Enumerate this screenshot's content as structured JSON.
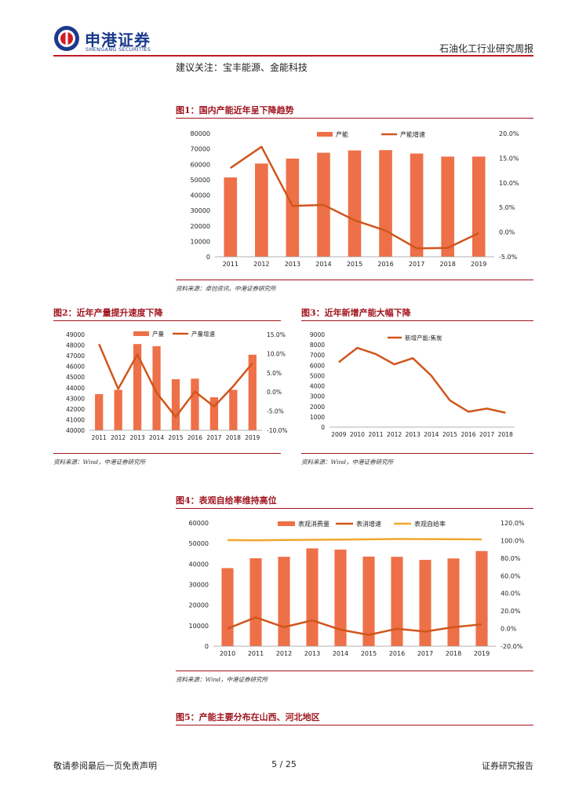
{
  "header": {
    "brand_cn": "申港证券",
    "brand_en": "SHENGANG SECURITIES",
    "report_type": "石油化工行业研究周报"
  },
  "recommendation": "建议关注：宝丰能源、金能科技",
  "colors": {
    "bar": "#ee7048",
    "line": "#d0561c",
    "line_gold": "#f0a830",
    "accent": "#a0141e"
  },
  "figures": {
    "fig1": {
      "title": "图1：国内产能近年呈下降趋势",
      "source": "资料来源：卓创资讯，中港证券研究所"
    },
    "fig2": {
      "title": "图2：近年产量提升速度下降",
      "source": "资料来源：Wind，中港证券研究所"
    },
    "fig3": {
      "title": "图3：近年新增产能大幅下降",
      "source": "资料来源：Wind，中港证券研究所"
    },
    "fig4": {
      "title": "图4：表观自给率维持高位",
      "source": "资料来源：Wind，中港证券研究所"
    },
    "fig5": {
      "title": "图5：产能主要分布在山西、河北地区"
    }
  },
  "chart_data": [
    {
      "id": "fig1",
      "type": "bar+line",
      "categories": [
        "2011",
        "2012",
        "2013",
        "2014",
        "2015",
        "2016",
        "2017",
        "2018",
        "2019"
      ],
      "series": [
        {
          "name": "产能",
          "type": "bar",
          "axis": "left",
          "values": [
            51500,
            60500,
            63700,
            67500,
            69000,
            69200,
            67000,
            65000,
            65000
          ]
        },
        {
          "name": "产能增速",
          "type": "line",
          "axis": "right",
          "values": [
            13.0,
            17.3,
            5.3,
            5.5,
            2.4,
            0.3,
            -3.3,
            -3.2,
            -0.2
          ]
        }
      ],
      "y_left": {
        "min": 0,
        "max": 80000,
        "step": 10000
      },
      "y_right": {
        "min": -5,
        "max": 20,
        "step": 5,
        "suffix": "%"
      },
      "legend": "top"
    },
    {
      "id": "fig2",
      "type": "bar+line",
      "categories": [
        "2011",
        "2012",
        "2013",
        "2014",
        "2015",
        "2016",
        "2017",
        "2018",
        "2019"
      ],
      "series": [
        {
          "name": "产量",
          "type": "bar",
          "axis": "left",
          "values": [
            43400,
            43800,
            48100,
            47900,
            44800,
            44850,
            43100,
            43800,
            47100
          ]
        },
        {
          "name": "产量增速",
          "type": "line",
          "axis": "right",
          "values": [
            12.5,
            0.8,
            9.8,
            -0.2,
            -6.5,
            0.1,
            -3.8,
            1.5,
            7.5
          ]
        }
      ],
      "y_left": {
        "min": 40000,
        "max": 49000,
        "step": 1000
      },
      "y_right": {
        "min": -10,
        "max": 15,
        "step": 5,
        "suffix": "%"
      },
      "legend": "top"
    },
    {
      "id": "fig3",
      "type": "line",
      "categories": [
        "2009",
        "2010",
        "2011",
        "2012",
        "2013",
        "2014",
        "2015",
        "2016",
        "2017",
        "2018"
      ],
      "series": [
        {
          "name": "新增产能:焦炭",
          "type": "line",
          "axis": "left",
          "values": [
            6300,
            7700,
            7100,
            6100,
            6700,
            5000,
            2600,
            1500,
            1800,
            1400
          ]
        }
      ],
      "y_left": {
        "min": 0,
        "max": 9000,
        "step": 1000
      },
      "legend": "top"
    },
    {
      "id": "fig4",
      "type": "bar+line",
      "categories": [
        "2010",
        "2011",
        "2012",
        "2013",
        "2014",
        "2015",
        "2016",
        "2017",
        "2018",
        "2019"
      ],
      "series": [
        {
          "name": "表观消费量",
          "type": "bar",
          "axis": "left",
          "values": [
            38000,
            42800,
            43500,
            47600,
            47000,
            43600,
            43500,
            42000,
            42700,
            46300
          ]
        },
        {
          "name": "表消增速",
          "type": "line",
          "axis": "right",
          "values": [
            0.0,
            12.7,
            1.6,
            9.4,
            -1.3,
            -7.2,
            -0.2,
            -3.4,
            1.6,
            4.8
          ]
        },
        {
          "name": "表观自给率",
          "type": "line",
          "axis": "right",
          "color": "gold",
          "values": [
            100.5,
            100.3,
            100.6,
            100.8,
            101.0,
            101.4,
            101.7,
            101.6,
            101.5,
            101.3
          ]
        }
      ],
      "y_left": {
        "min": 0,
        "max": 60000,
        "step": 10000
      },
      "y_right": {
        "min": -20,
        "max": 120,
        "step": 20,
        "suffix": "%"
      },
      "legend": "top"
    }
  ],
  "footer": {
    "disclaimer": "敬请参阅最后一页免责声明",
    "page": "5 / 25",
    "label": "证券研究报告"
  }
}
